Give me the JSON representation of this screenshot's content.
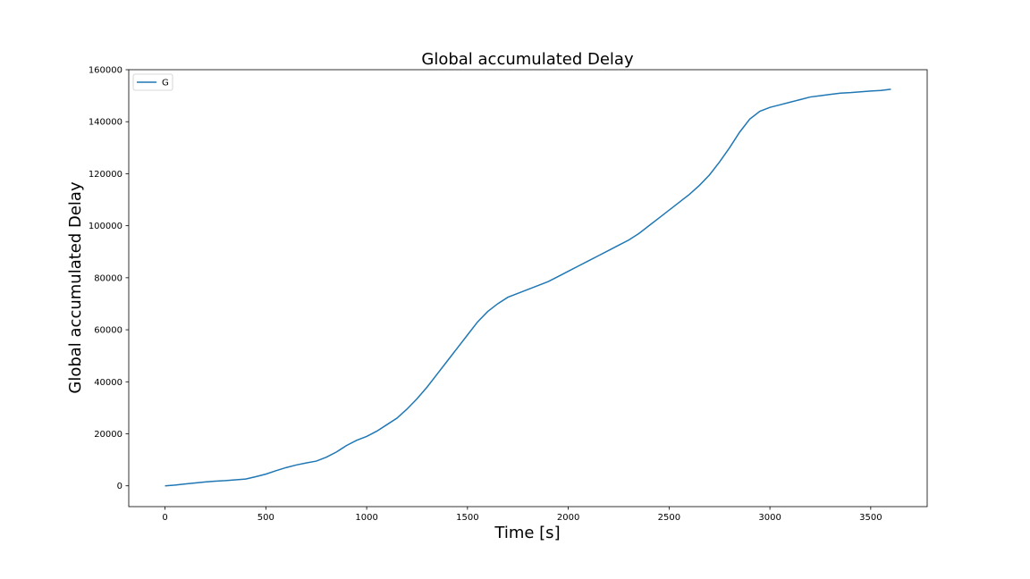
{
  "chart_data": {
    "type": "line",
    "title": "Global accumulated Delay",
    "xlabel": "Time [s]",
    "ylabel": "Global accumulated Delay",
    "xlim": [
      -180,
      3780
    ],
    "ylim": [
      -8000,
      160000
    ],
    "xticks": [
      0,
      500,
      1000,
      1500,
      2000,
      2500,
      3000,
      3500
    ],
    "yticks": [
      0,
      20000,
      40000,
      60000,
      80000,
      100000,
      120000,
      140000,
      160000
    ],
    "grid": false,
    "legend_position": "top-left",
    "series": [
      {
        "name": "G",
        "color": "#1f77b4",
        "x": [
          0,
          50,
          100,
          150,
          200,
          250,
          300,
          350,
          400,
          450,
          500,
          550,
          600,
          650,
          700,
          750,
          800,
          850,
          900,
          950,
          1000,
          1050,
          1100,
          1150,
          1200,
          1250,
          1300,
          1350,
          1400,
          1450,
          1500,
          1550,
          1600,
          1650,
          1700,
          1750,
          1800,
          1850,
          1900,
          1950,
          2000,
          2050,
          2100,
          2150,
          2200,
          2250,
          2300,
          2350,
          2400,
          2450,
          2500,
          2550,
          2600,
          2650,
          2700,
          2750,
          2800,
          2850,
          2900,
          2950,
          3000,
          3050,
          3100,
          3150,
          3200,
          3250,
          3300,
          3350,
          3400,
          3450,
          3500,
          3550,
          3600
        ],
        "y": [
          0,
          300,
          700,
          1100,
          1500,
          1800,
          2000,
          2300,
          2600,
          3500,
          4500,
          5800,
          7000,
          8000,
          8800,
          9500,
          11000,
          13000,
          15500,
          17500,
          19000,
          21000,
          23500,
          26000,
          29500,
          33500,
          38000,
          43000,
          48000,
          53000,
          58000,
          63000,
          67000,
          70000,
          72500,
          74000,
          75500,
          77000,
          78500,
          80500,
          82500,
          84500,
          86500,
          88500,
          90500,
          92500,
          94500,
          97000,
          100000,
          103000,
          106000,
          109000,
          112000,
          115500,
          119500,
          124500,
          130000,
          136000,
          141000,
          144000,
          145500,
          146500,
          147500,
          148500,
          149500,
          150000,
          150500,
          151000,
          151200,
          151500,
          151800,
          152000,
          152500
        ]
      }
    ]
  }
}
